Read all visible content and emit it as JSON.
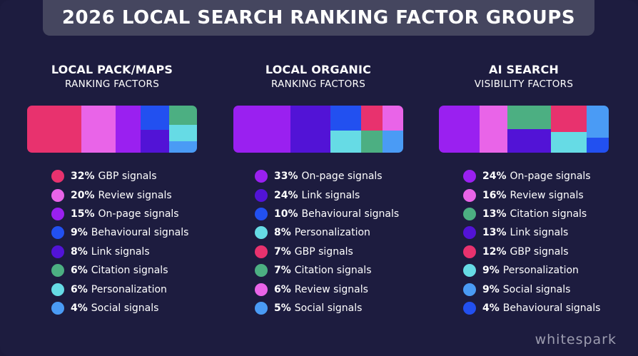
{
  "title": "2026 LOCAL SEARCH RANKING FACTOR GROUPS",
  "brand": "whitespark",
  "colors": {
    "GBP signals": "#e8326e",
    "Review signals": "#e964e8",
    "On-page signals": "#9a20f0",
    "Behavioural signals": "#2250f0",
    "Link signals": "#5213d6",
    "Citation signals": "#4caf82",
    "Personalization": "#66dbe5",
    "Social signals": "#4a9bf5"
  },
  "chart_data": [
    {
      "type": "treemap",
      "title": "LOCAL PACK/MAPS",
      "subtitle": "RANKING FACTORS",
      "items": [
        {
          "label": "GBP signals",
          "pct": "32%",
          "value": 32
        },
        {
          "label": "Review signals",
          "pct": "20%",
          "value": 20
        },
        {
          "label": "On-page signals",
          "pct": "15%",
          "value": 15
        },
        {
          "label": "Behavioural signals",
          "pct": "9%",
          "value": 9
        },
        {
          "label": "Link signals",
          "pct": "8%",
          "value": 8
        },
        {
          "label": "Citation signals",
          "pct": "6%",
          "value": 6
        },
        {
          "label": "Personalization",
          "pct": "6%",
          "value": 6
        },
        {
          "label": "Social signals",
          "pct": "4%",
          "value": 4
        }
      ]
    },
    {
      "type": "treemap",
      "title": "LOCAL ORGANIC",
      "subtitle": "RANKING FACTORS",
      "items": [
        {
          "label": "On-page signals",
          "pct": "33%",
          "value": 33
        },
        {
          "label": "Link signals",
          "pct": "24%",
          "value": 24
        },
        {
          "label": "Behavioural signals",
          "pct": "10%",
          "value": 10
        },
        {
          "label": "Personalization",
          "pct": "8%",
          "value": 8
        },
        {
          "label": "GBP signals",
          "pct": "7%",
          "value": 7
        },
        {
          "label": "Citation signals",
          "pct": "7%",
          "value": 7
        },
        {
          "label": "Review signals",
          "pct": "6%",
          "value": 6
        },
        {
          "label": "Social signals",
          "pct": "5%",
          "value": 5
        }
      ]
    },
    {
      "type": "treemap",
      "title": "AI SEARCH",
      "subtitle": "VISIBILITY FACTORS",
      "items": [
        {
          "label": "On-page signals",
          "pct": "24%",
          "value": 24
        },
        {
          "label": "Review signals",
          "pct": "16%",
          "value": 16
        },
        {
          "label": "Citation signals",
          "pct": "13%",
          "value": 13
        },
        {
          "label": "Link signals",
          "pct": "13%",
          "value": 13
        },
        {
          "label": "GBP signals",
          "pct": "12%",
          "value": 12
        },
        {
          "label": "Personalization",
          "pct": "9%",
          "value": 9
        },
        {
          "label": "Social signals",
          "pct": "9%",
          "value": 9
        },
        {
          "label": "Behavioural signals",
          "pct": "4%",
          "value": 4
        }
      ]
    }
  ]
}
